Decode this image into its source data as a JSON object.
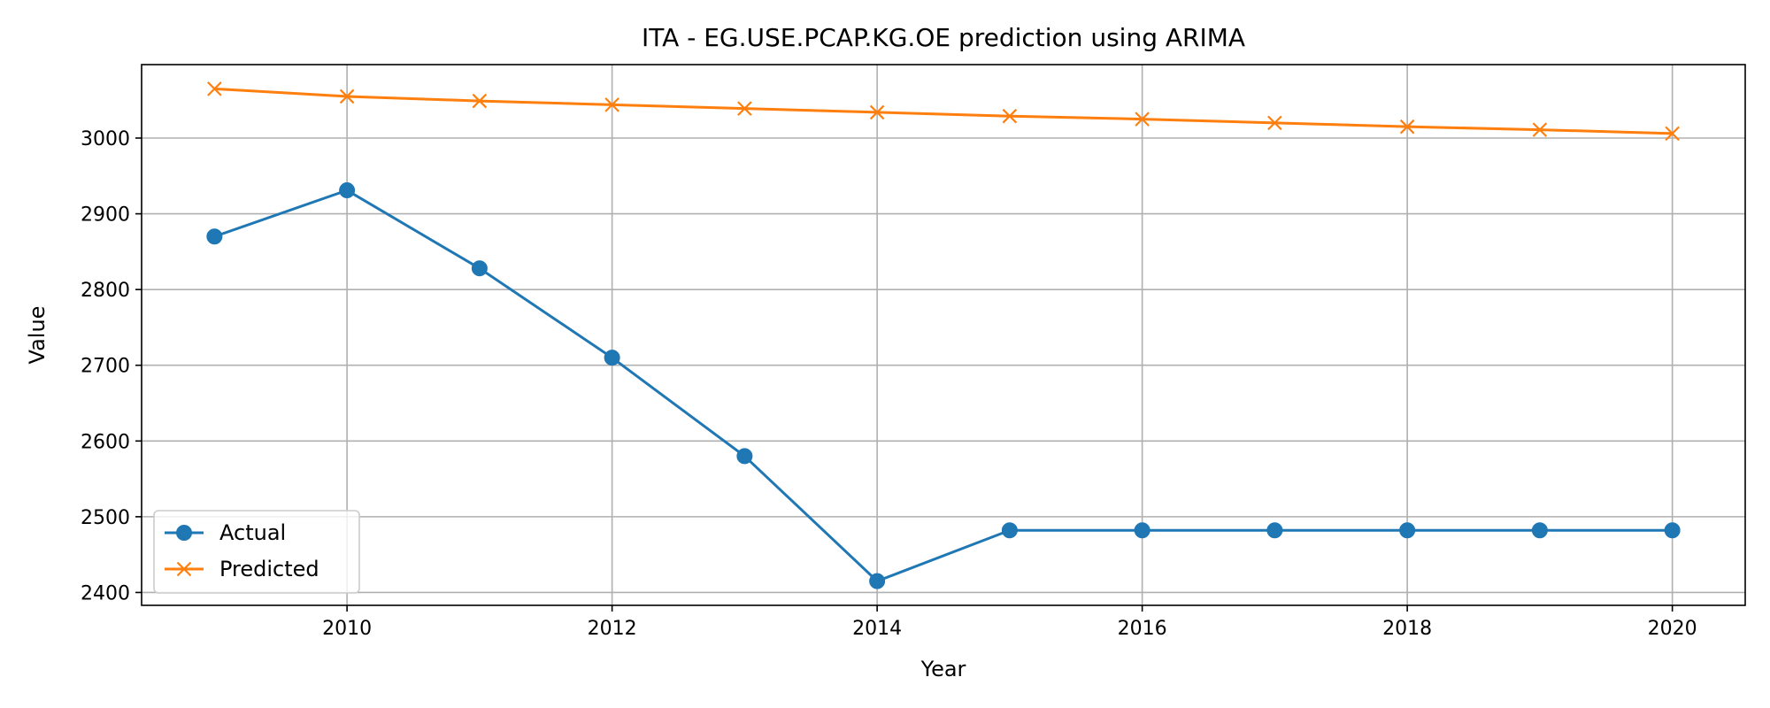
{
  "chart_data": {
    "type": "line",
    "title": "ITA - EG.USE.PCAP.KG.OE prediction using ARIMA",
    "xlabel": "Year",
    "ylabel": "Value",
    "x": [
      2009,
      2010,
      2011,
      2012,
      2013,
      2014,
      2015,
      2016,
      2017,
      2018,
      2019,
      2020
    ],
    "xlim": [
      2008.45,
      2020.55
    ],
    "ylim": [
      2383,
      3097
    ],
    "x_ticks": [
      2010,
      2012,
      2014,
      2016,
      2018,
      2020
    ],
    "y_ticks": [
      2400,
      2500,
      2600,
      2700,
      2800,
      2900,
      3000
    ],
    "grid": true,
    "legend_position": "lower left",
    "series": [
      {
        "name": "Actual",
        "color": "#1f77b4",
        "marker": "circle",
        "values": [
          2870,
          2931,
          2828,
          2710,
          2580,
          2415,
          2482,
          2482,
          2482,
          2482,
          2482,
          2482
        ]
      },
      {
        "name": "Predicted",
        "color": "#ff7f0e",
        "marker": "x",
        "values": [
          3065,
          3055,
          3049,
          3044,
          3039,
          3034,
          3029,
          3025,
          3020,
          3015,
          3011,
          3006
        ]
      }
    ]
  }
}
